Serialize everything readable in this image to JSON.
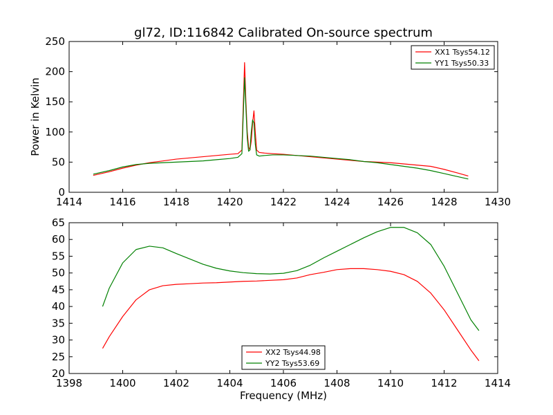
{
  "chart_data": [
    {
      "type": "line",
      "title": "gl72, ID:116842 Calibrated On-source spectrum",
      "xlabel": "",
      "ylabel": "Power in Kelvin",
      "xlim": [
        1414,
        1430
      ],
      "ylim": [
        0,
        250
      ],
      "xticks": [
        1414,
        1416,
        1418,
        1420,
        1422,
        1424,
        1426,
        1428,
        1430
      ],
      "yticks": [
        0,
        50,
        100,
        150,
        200,
        250
      ],
      "legend_position": "top-right",
      "series": [
        {
          "name": "XX1 Tsys54.12",
          "color": "#ff0000",
          "x": [
            1414.9,
            1415.5,
            1416.0,
            1416.5,
            1417.0,
            1417.5,
            1418.0,
            1418.5,
            1419.0,
            1419.5,
            1420.0,
            1420.3,
            1420.45,
            1420.55,
            1420.6,
            1420.65,
            1420.7,
            1420.75,
            1420.8,
            1420.85,
            1420.9,
            1420.95,
            1421.0,
            1421.1,
            1421.3,
            1421.6,
            1422.0,
            1422.5,
            1423.0,
            1423.5,
            1424.0,
            1424.5,
            1425.0,
            1425.5,
            1426.0,
            1426.5,
            1427.0,
            1427.5,
            1428.0,
            1428.5,
            1428.9
          ],
          "y": [
            28,
            34,
            40,
            45,
            49,
            52,
            55,
            57,
            59,
            61,
            63,
            64,
            70,
            215,
            150,
            100,
            75,
            70,
            85,
            115,
            135,
            100,
            70,
            66,
            65,
            64,
            63,
            61,
            59,
            57,
            55,
            53,
            51,
            50,
            49,
            47,
            45,
            43,
            38,
            32,
            27
          ]
        },
        {
          "name": "YY1 Tsys50.33",
          "color": "#008000",
          "x": [
            1414.9,
            1415.5,
            1416.0,
            1416.5,
            1417.0,
            1417.5,
            1418.0,
            1418.5,
            1419.0,
            1419.5,
            1420.0,
            1420.3,
            1420.45,
            1420.55,
            1420.6,
            1420.65,
            1420.7,
            1420.75,
            1420.8,
            1420.85,
            1420.9,
            1420.95,
            1421.0,
            1421.1,
            1421.3,
            1421.6,
            1422.0,
            1422.5,
            1423.0,
            1423.5,
            1424.0,
            1424.5,
            1425.0,
            1425.5,
            1426.0,
            1426.5,
            1427.0,
            1427.5,
            1428.0,
            1428.5,
            1428.9
          ],
          "y": [
            30,
            36,
            42,
            46,
            48,
            49,
            50,
            51,
            52,
            54,
            56,
            58,
            64,
            190,
            140,
            90,
            68,
            70,
            100,
            120,
            115,
            80,
            62,
            60,
            61,
            62,
            62,
            61,
            60,
            58,
            56,
            54,
            51,
            49,
            46,
            43,
            40,
            36,
            31,
            26,
            22
          ]
        }
      ]
    },
    {
      "type": "line",
      "title": "",
      "xlabel": "Frequency (MHz)",
      "ylabel": "",
      "xlim": [
        1398,
        1414
      ],
      "ylim": [
        20,
        65
      ],
      "xticks": [
        1398,
        1400,
        1402,
        1404,
        1406,
        1408,
        1410,
        1412,
        1414
      ],
      "yticks": [
        20,
        25,
        30,
        35,
        40,
        45,
        50,
        55,
        60,
        65
      ],
      "legend_position": "bottom-center",
      "series": [
        {
          "name": "XX2 Tsys44.98",
          "color": "#ff0000",
          "x": [
            1399.25,
            1399.5,
            1400.0,
            1400.5,
            1401.0,
            1401.5,
            1402.0,
            1402.5,
            1403.0,
            1403.5,
            1404.0,
            1404.5,
            1405.0,
            1405.5,
            1406.0,
            1406.5,
            1407.0,
            1407.5,
            1408.0,
            1408.5,
            1409.0,
            1409.5,
            1410.0,
            1410.5,
            1411.0,
            1411.5,
            1412.0,
            1412.5,
            1413.0,
            1413.3
          ],
          "y": [
            27.5,
            31,
            37,
            42,
            45,
            46.2,
            46.6,
            46.8,
            47,
            47.1,
            47.3,
            47.5,
            47.6,
            47.8,
            48,
            48.5,
            49.5,
            50.2,
            51,
            51.3,
            51.3,
            51,
            50.5,
            49.5,
            47.5,
            44,
            39,
            33,
            27,
            23.8
          ]
        },
        {
          "name": "YY2 Tsys53.69",
          "color": "#008000",
          "x": [
            1399.25,
            1399.5,
            1400.0,
            1400.5,
            1401.0,
            1401.5,
            1402.0,
            1402.5,
            1403.0,
            1403.5,
            1404.0,
            1404.5,
            1405.0,
            1405.5,
            1406.0,
            1406.5,
            1407.0,
            1407.5,
            1408.0,
            1408.5,
            1409.0,
            1409.5,
            1410.0,
            1410.5,
            1411.0,
            1411.5,
            1412.0,
            1412.5,
            1413.0,
            1413.3
          ],
          "y": [
            40,
            45.5,
            53,
            57,
            58,
            57.5,
            55.8,
            54.2,
            52.6,
            51.4,
            50.6,
            50.1,
            49.8,
            49.7,
            49.9,
            50.7,
            52.3,
            54.5,
            56.5,
            58.5,
            60.5,
            62.3,
            63.6,
            63.6,
            62,
            58.5,
            52,
            44,
            36,
            32.8
          ]
        }
      ]
    }
  ]
}
